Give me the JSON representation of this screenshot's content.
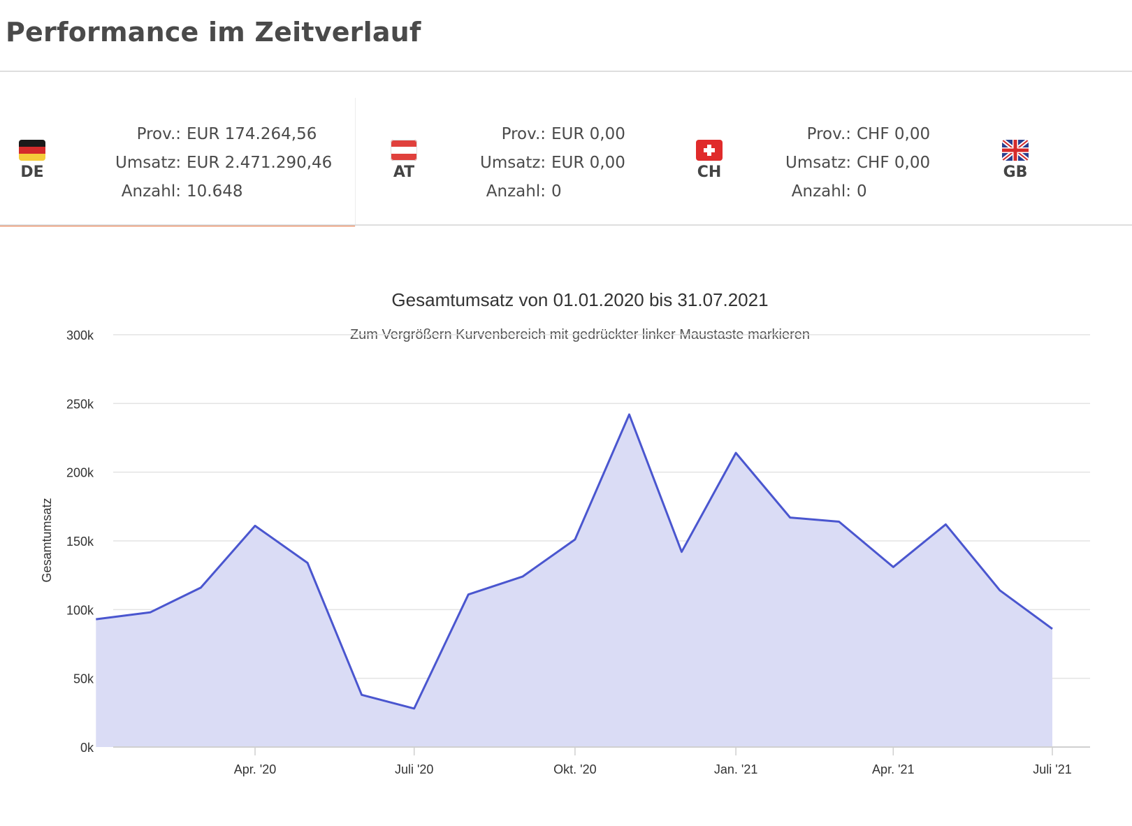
{
  "page": {
    "title": "Performance im Zeitverlauf"
  },
  "countries": [
    {
      "code": "DE",
      "flag": "germany-flag",
      "active": true,
      "prov_label": "Prov.:",
      "prov_value": "EUR 174.264,56",
      "umsatz_label": "Umsatz:",
      "umsatz_value": "EUR 2.471.290,46",
      "anzahl_label": "Anzahl:",
      "anzahl_value": "10.648"
    },
    {
      "code": "AT",
      "flag": "austria-flag",
      "active": false,
      "prov_label": "Prov.:",
      "prov_value": "EUR 0,00",
      "umsatz_label": "Umsatz:",
      "umsatz_value": "EUR 0,00",
      "anzahl_label": "Anzahl:",
      "anzahl_value": "0"
    },
    {
      "code": "CH",
      "flag": "switzerland-flag",
      "active": false,
      "prov_label": "Prov.:",
      "prov_value": "CHF 0,00",
      "umsatz_label": "Umsatz:",
      "umsatz_value": "CHF 0,00",
      "anzahl_label": "Anzahl:",
      "anzahl_value": "0"
    },
    {
      "code": "GB",
      "flag": "uk-flag",
      "active": false
    }
  ],
  "colors": {
    "accent": "#e8703a",
    "series_line": "#4a56cf",
    "series_fill": "#dadcf5",
    "grid": "#e3e3e3"
  },
  "chart_data": {
    "type": "area",
    "title": "Gesamtumsatz von 01.01.2020 bis 31.07.2021",
    "subtitle": "Zum Vergrößern Kurvenbereich mit gedrückter linker Maustaste markieren",
    "ylabel": "Gesamtumsatz",
    "xlabel": "",
    "ylim": [
      0,
      300000
    ],
    "y_ticks": [
      0,
      50000,
      100000,
      150000,
      200000,
      250000,
      300000
    ],
    "y_tick_labels": [
      "0k",
      "50k",
      "100k",
      "150k",
      "200k",
      "250k",
      "300k"
    ],
    "x_range": [
      "2020-01-01",
      "2021-07-31"
    ],
    "x_ticks": [
      {
        "date": "2020-04-01",
        "label": "Apr. '20"
      },
      {
        "date": "2020-07-01",
        "label": "Juli '20"
      },
      {
        "date": "2020-10-01",
        "label": "Okt. '20"
      },
      {
        "date": "2021-01-01",
        "label": "Jan. '21"
      },
      {
        "date": "2021-04-01",
        "label": "Apr. '21"
      },
      {
        "date": "2021-07-01",
        "label": "Juli '21"
      }
    ],
    "grid": true,
    "legend": "none",
    "series": [
      {
        "points": [
          {
            "x": "2020-01-01",
            "y": 93000
          },
          {
            "x": "2020-02-01",
            "y": 98000
          },
          {
            "x": "2020-03-01",
            "y": 116000
          },
          {
            "x": "2020-04-01",
            "y": 161000
          },
          {
            "x": "2020-05-01",
            "y": 134000
          },
          {
            "x": "2020-06-01",
            "y": 38000
          },
          {
            "x": "2020-07-01",
            "y": 28000
          },
          {
            "x": "2020-08-01",
            "y": 111000
          },
          {
            "x": "2020-09-01",
            "y": 124000
          },
          {
            "x": "2020-10-01",
            "y": 151000
          },
          {
            "x": "2020-11-01",
            "y": 242000
          },
          {
            "x": "2020-12-01",
            "y": 142000
          },
          {
            "x": "2021-01-01",
            "y": 214000
          },
          {
            "x": "2021-02-01",
            "y": 167000
          },
          {
            "x": "2021-03-01",
            "y": 164000
          },
          {
            "x": "2021-04-01",
            "y": 131000
          },
          {
            "x": "2021-05-01",
            "y": 162000
          },
          {
            "x": "2021-06-01",
            "y": 114000
          },
          {
            "x": "2021-07-01",
            "y": 86000
          }
        ]
      }
    ]
  }
}
